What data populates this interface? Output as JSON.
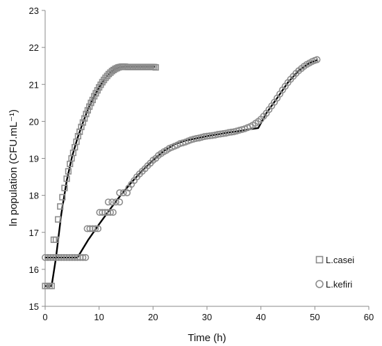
{
  "chart_data": {
    "type": "scatter",
    "xlabel": "Time (h)",
    "ylabel": "ln population (CFU.mL⁻¹)",
    "xlim": [
      0,
      60
    ],
    "ylim": [
      15,
      23
    ],
    "xticks": [
      0,
      10,
      20,
      30,
      40,
      50,
      60
    ],
    "yticks": [
      15,
      16,
      17,
      18,
      19,
      20,
      21,
      22,
      23
    ],
    "grid": false,
    "legend_position": "bottom-right",
    "series": [
      {
        "name": "L.casei",
        "marker": "square",
        "marker_color": "#8c8c8c",
        "fit_color": "#000000",
        "points": [
          [
            0,
            15.55
          ],
          [
            0.4,
            15.55
          ],
          [
            0.8,
            15.55
          ],
          [
            1.2,
            15.55
          ],
          [
            1.6,
            16.8
          ],
          [
            2.0,
            16.8
          ],
          [
            2.4,
            17.35
          ],
          [
            2.8,
            17.7
          ],
          [
            3.2,
            17.95
          ],
          [
            3.6,
            18.2
          ],
          [
            4.0,
            18.45
          ],
          [
            4.3,
            18.65
          ],
          [
            4.6,
            18.85
          ],
          [
            4.9,
            19.0
          ],
          [
            5.2,
            19.15
          ],
          [
            5.5,
            19.3
          ],
          [
            5.8,
            19.45
          ],
          [
            6.1,
            19.6
          ],
          [
            6.4,
            19.72
          ],
          [
            6.7,
            19.85
          ],
          [
            7.0,
            19.97
          ],
          [
            7.3,
            20.08
          ],
          [
            7.6,
            20.2
          ],
          [
            7.9,
            20.3
          ],
          [
            8.2,
            20.4
          ],
          [
            8.5,
            20.5
          ],
          [
            8.8,
            20.58
          ],
          [
            9.1,
            20.68
          ],
          [
            9.4,
            20.76
          ],
          [
            9.7,
            20.84
          ],
          [
            10.0,
            20.92
          ],
          [
            10.3,
            20.99
          ],
          [
            10.6,
            21.06
          ],
          [
            10.9,
            21.12
          ],
          [
            11.2,
            21.18
          ],
          [
            11.5,
            21.23
          ],
          [
            11.8,
            21.28
          ],
          [
            12.1,
            21.32
          ],
          [
            12.4,
            21.36
          ],
          [
            12.7,
            21.39
          ],
          [
            13.0,
            21.42
          ],
          [
            13.3,
            21.44
          ],
          [
            13.6,
            21.46
          ],
          [
            13.9,
            21.47
          ],
          [
            14.2,
            21.48
          ],
          [
            14.5,
            21.48
          ],
          [
            14.8,
            21.48
          ],
          [
            15.1,
            21.47
          ],
          [
            15.4,
            21.47
          ],
          [
            15.7,
            21.47
          ],
          [
            16.0,
            21.47
          ],
          [
            16.3,
            21.47
          ],
          [
            16.6,
            21.47
          ],
          [
            16.9,
            21.47
          ],
          [
            17.2,
            21.47
          ],
          [
            17.5,
            21.47
          ],
          [
            17.8,
            21.47
          ],
          [
            18.1,
            21.47
          ],
          [
            18.4,
            21.47
          ],
          [
            18.7,
            21.47
          ],
          [
            19.0,
            21.47
          ],
          [
            19.3,
            21.47
          ],
          [
            19.6,
            21.47
          ],
          [
            19.9,
            21.47
          ],
          [
            20.2,
            21.47
          ],
          [
            20.5,
            21.46
          ]
        ],
        "fit": [
          [
            0,
            15.55
          ],
          [
            1.2,
            15.55
          ],
          [
            2.0,
            16.3
          ],
          [
            3.0,
            17.5
          ],
          [
            4.0,
            18.4
          ],
          [
            5.0,
            19.05
          ],
          [
            6.0,
            19.55
          ],
          [
            7.0,
            19.97
          ],
          [
            8.0,
            20.35
          ],
          [
            9.0,
            20.65
          ],
          [
            10.0,
            20.92
          ],
          [
            11.0,
            21.14
          ],
          [
            12.0,
            21.31
          ],
          [
            13.0,
            21.42
          ],
          [
            14.0,
            21.47
          ],
          [
            15.0,
            21.48
          ],
          [
            20.5,
            21.48
          ]
        ]
      },
      {
        "name": "L.kefiri",
        "marker": "circle",
        "marker_color": "#8c8c8c",
        "fit_color": "#000000",
        "points": [
          [
            0,
            16.32
          ],
          [
            0.5,
            16.32
          ],
          [
            1.0,
            16.32
          ],
          [
            1.5,
            16.32
          ],
          [
            2.0,
            16.32
          ],
          [
            2.5,
            16.32
          ],
          [
            3.0,
            16.32
          ],
          [
            3.5,
            16.32
          ],
          [
            4.0,
            16.32
          ],
          [
            4.5,
            16.32
          ],
          [
            5.0,
            16.32
          ],
          [
            5.5,
            16.32
          ],
          [
            6.0,
            16.32
          ],
          [
            6.5,
            16.32
          ],
          [
            7.0,
            16.32
          ],
          [
            7.5,
            16.32
          ],
          [
            7.8,
            17.1
          ],
          [
            8.3,
            17.1
          ],
          [
            8.8,
            17.1
          ],
          [
            9.3,
            17.1
          ],
          [
            9.8,
            17.1
          ],
          [
            10.1,
            17.54
          ],
          [
            10.6,
            17.54
          ],
          [
            11.1,
            17.54
          ],
          [
            11.6,
            17.54
          ],
          [
            12.1,
            17.54
          ],
          [
            12.6,
            17.54
          ],
          [
            11.7,
            17.82
          ],
          [
            12.4,
            17.82
          ],
          [
            13.1,
            17.82
          ],
          [
            13.8,
            17.82
          ],
          [
            13.8,
            18.07
          ],
          [
            14.5,
            18.07
          ],
          [
            15.2,
            18.07
          ],
          [
            15.5,
            18.2
          ],
          [
            16.0,
            18.3
          ],
          [
            16.5,
            18.4
          ],
          [
            17.0,
            18.5
          ],
          [
            17.5,
            18.58
          ],
          [
            18.0,
            18.65
          ],
          [
            18.5,
            18.72
          ],
          [
            19.0,
            18.8
          ],
          [
            19.5,
            18.87
          ],
          [
            20.0,
            18.95
          ],
          [
            20.5,
            19.0
          ],
          [
            21.0,
            19.08
          ],
          [
            21.5,
            19.13
          ],
          [
            22.0,
            19.18
          ],
          [
            22.5,
            19.22
          ],
          [
            23.0,
            19.27
          ],
          [
            23.5,
            19.3
          ],
          [
            24.0,
            19.33
          ],
          [
            24.5,
            19.36
          ],
          [
            25.0,
            19.4
          ],
          [
            25.5,
            19.42
          ],
          [
            26.0,
            19.44
          ],
          [
            26.5,
            19.47
          ],
          [
            27.0,
            19.5
          ],
          [
            27.5,
            19.52
          ],
          [
            28.0,
            19.54
          ],
          [
            28.5,
            19.55
          ],
          [
            29.0,
            19.57
          ],
          [
            29.5,
            19.59
          ],
          [
            30.0,
            19.6
          ],
          [
            30.5,
            19.61
          ],
          [
            31.0,
            19.62
          ],
          [
            31.5,
            19.63
          ],
          [
            32.0,
            19.65
          ],
          [
            32.5,
            19.66
          ],
          [
            33.0,
            19.67
          ],
          [
            33.5,
            19.68
          ],
          [
            34.0,
            19.7
          ],
          [
            34.5,
            19.71
          ],
          [
            35.0,
            19.72
          ],
          [
            35.5,
            19.74
          ],
          [
            36.0,
            19.76
          ],
          [
            36.5,
            19.78
          ],
          [
            37.0,
            19.8
          ],
          [
            37.5,
            19.83
          ],
          [
            38.0,
            19.86
          ],
          [
            38.5,
            19.9
          ],
          [
            39.0,
            19.95
          ],
          [
            39.5,
            20.0
          ],
          [
            40.0,
            20.06
          ],
          [
            40.5,
            20.14
          ],
          [
            41.0,
            20.22
          ],
          [
            41.5,
            20.32
          ],
          [
            42.0,
            20.42
          ],
          [
            42.5,
            20.52
          ],
          [
            43.0,
            20.63
          ],
          [
            43.5,
            20.74
          ],
          [
            44.0,
            20.85
          ],
          [
            44.5,
            20.95
          ],
          [
            45.0,
            21.05
          ],
          [
            45.5,
            21.14
          ],
          [
            46.0,
            21.22
          ],
          [
            46.5,
            21.3
          ],
          [
            47.0,
            21.37
          ],
          [
            47.5,
            21.43
          ],
          [
            48.0,
            21.49
          ],
          [
            48.5,
            21.54
          ],
          [
            49.0,
            21.58
          ],
          [
            49.5,
            21.62
          ],
          [
            50.0,
            21.65
          ],
          [
            50.4,
            21.67
          ]
        ],
        "fit": [
          [
            0,
            16.32
          ],
          [
            6.0,
            16.32
          ],
          [
            8.0,
            16.8
          ],
          [
            10.0,
            17.22
          ],
          [
            12.0,
            17.62
          ],
          [
            14.0,
            18.0
          ],
          [
            16.0,
            18.35
          ],
          [
            18.0,
            18.67
          ],
          [
            20.0,
            18.95
          ],
          [
            22.0,
            19.2
          ],
          [
            24.0,
            19.38
          ],
          [
            26.0,
            19.48
          ],
          [
            28.0,
            19.54
          ],
          [
            30.0,
            19.6
          ],
          [
            32.0,
            19.65
          ],
          [
            34.0,
            19.7
          ],
          [
            36.0,
            19.74
          ],
          [
            38.0,
            19.79
          ],
          [
            39.5,
            19.82
          ],
          [
            41.0,
            20.22
          ],
          [
            43.0,
            20.63
          ],
          [
            45.0,
            21.05
          ],
          [
            47.0,
            21.37
          ],
          [
            49.0,
            21.58
          ],
          [
            50.4,
            21.66
          ]
        ]
      }
    ]
  }
}
